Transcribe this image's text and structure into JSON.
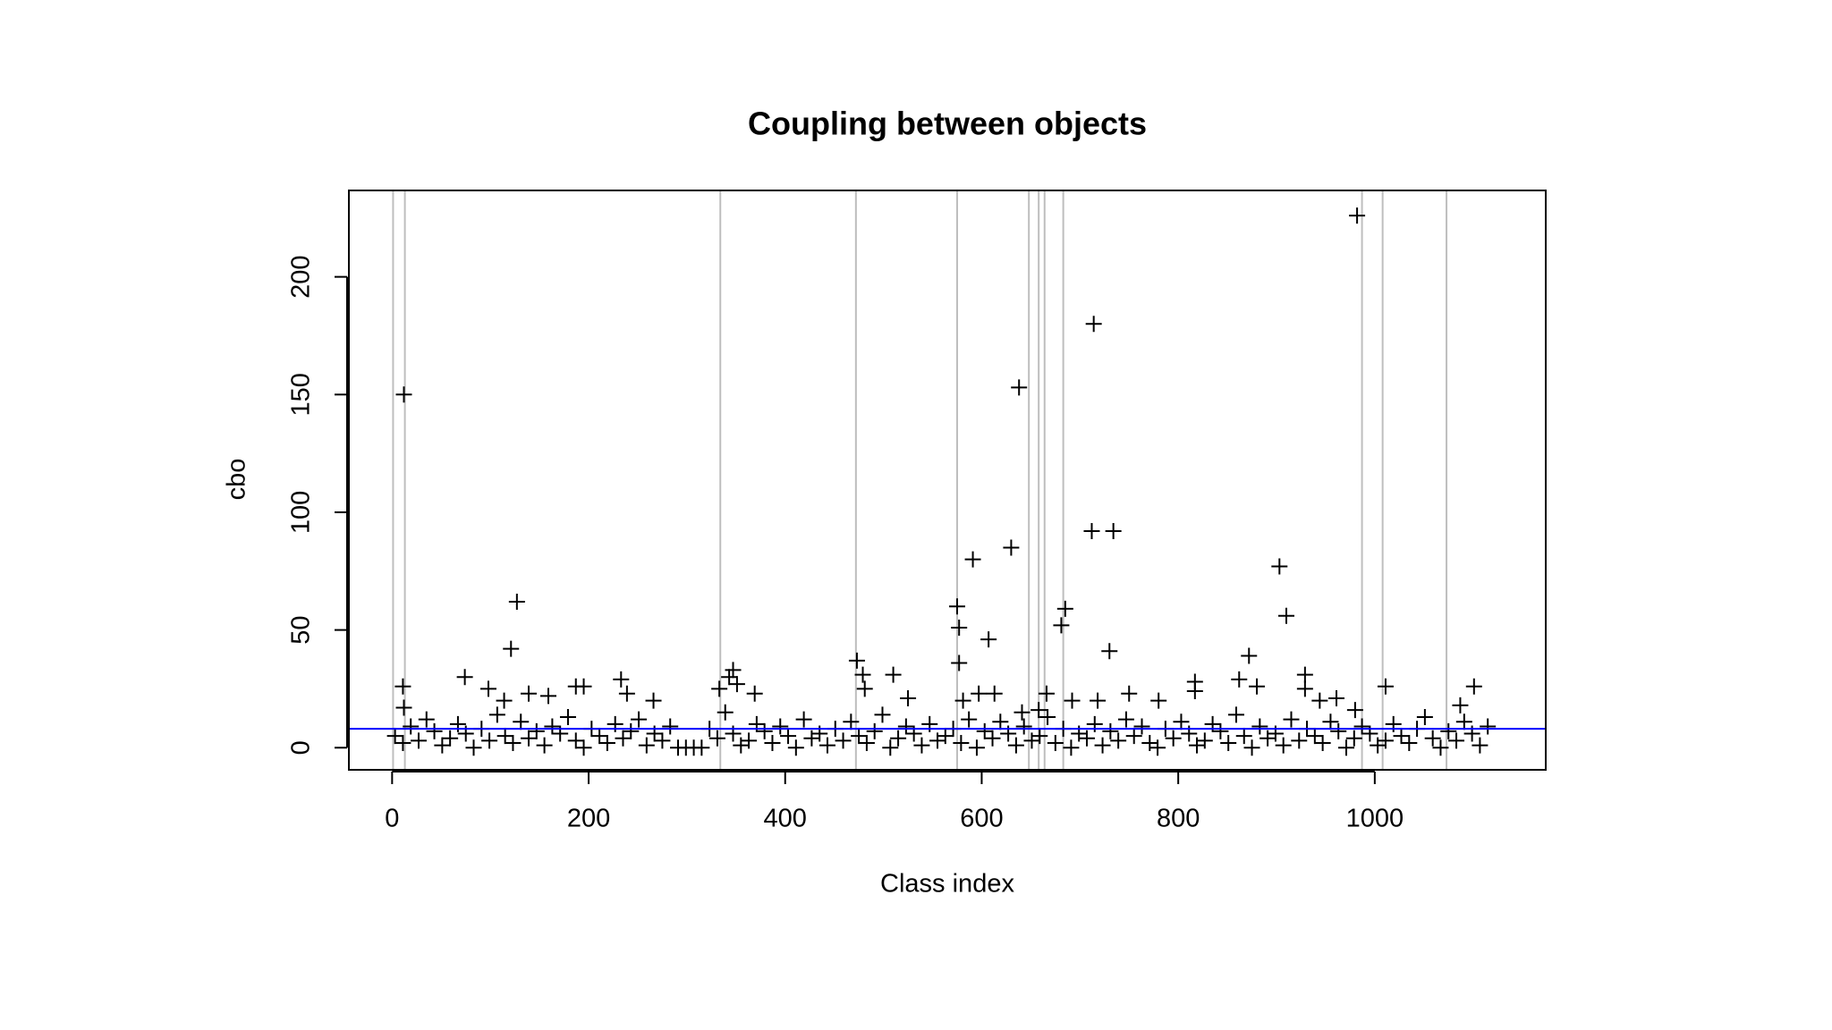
{
  "chart_data": {
    "type": "scatter",
    "title": "Coupling between objects",
    "x_label": "Class index",
    "y_label": "cbo",
    "xlim": [
      -44,
      1174
    ],
    "ylim": [
      -9.4,
      236.7
    ],
    "xticks": [
      0,
      200,
      400,
      600,
      800,
      1000
    ],
    "yticks": [
      0,
      50,
      100,
      150,
      200
    ],
    "color": "#000000",
    "vlines_color": "#bebebe",
    "hline_color": "#0000ff",
    "vlines": [
      1,
      13,
      334,
      472,
      575,
      648,
      658,
      664,
      683,
      987,
      1008,
      1073
    ],
    "hline": 8,
    "x": [
      12,
      11,
      12,
      121,
      127,
      74,
      98,
      114,
      139,
      159,
      187,
      195,
      233,
      239,
      266,
      333,
      347,
      351,
      343,
      369,
      473,
      479,
      481,
      510,
      525,
      575,
      577,
      577,
      581,
      591,
      607,
      597,
      613,
      630,
      638,
      641,
      658,
      666,
      681,
      685,
      692,
      714,
      712,
      734,
      730,
      718,
      750,
      780,
      817,
      817,
      862,
      872,
      880,
      903,
      910,
      929,
      929,
      944,
      961,
      982,
      980,
      1011,
      1101,
      1087,
      3,
      11,
      19,
      27,
      35,
      43,
      51,
      59,
      67,
      75,
      83,
      91,
      99,
      107,
      115,
      123,
      131,
      139,
      147,
      155,
      163,
      171,
      179,
      187,
      195,
      203,
      211,
      219,
      227,
      235,
      243,
      251,
      259,
      267,
      275,
      283,
      291,
      299,
      307,
      315,
      323,
      331,
      339,
      347,
      355,
      363,
      371,
      379,
      387,
      395,
      403,
      411,
      419,
      427,
      435,
      443,
      451,
      459,
      467,
      475,
      483,
      491,
      499,
      507,
      515,
      523,
      531,
      539,
      547,
      555,
      563,
      571,
      579,
      587,
      595,
      603,
      611,
      619,
      627,
      635,
      643,
      651,
      659,
      667,
      675,
      683,
      691,
      699,
      707,
      715,
      723,
      731,
      739,
      747,
      755,
      763,
      771,
      779,
      787,
      795,
      803,
      811,
      819,
      827,
      835,
      843,
      851,
      859,
      867,
      875,
      883,
      891,
      899,
      907,
      915,
      923,
      931,
      939,
      947,
      955,
      963,
      971,
      979,
      987,
      995,
      1003,
      1011,
      1019,
      1027,
      1035,
      1043,
      1051,
      1059,
      1067,
      1075,
      1083,
      1091,
      1099,
      1107,
      1115
    ],
    "values": [
      150,
      26,
      17,
      42,
      62,
      30,
      25,
      20,
      23,
      22,
      26,
      26,
      29,
      23,
      20,
      25,
      33,
      27,
      30,
      23,
      37,
      31,
      25,
      31,
      21,
      60,
      51,
      36,
      20,
      80,
      46,
      23,
      23,
      85,
      153,
      15,
      16,
      23,
      52,
      59,
      20,
      180,
      92,
      92,
      41,
      20,
      23,
      20,
      28,
      24,
      29,
      39,
      26,
      77,
      56,
      31,
      25,
      20,
      21,
      226,
      16,
      26,
      26,
      18,
      5,
      2,
      9,
      3,
      12,
      7,
      1,
      4,
      10,
      6,
      0,
      8,
      3,
      14,
      5,
      2,
      11,
      4,
      7,
      1,
      9,
      6,
      13,
      3,
      0,
      8,
      5,
      2,
      10,
      4,
      7,
      12,
      1,
      6,
      3,
      9,
      0,
      0,
      0,
      0,
      8,
      4,
      15,
      6,
      1,
      3,
      10,
      7,
      2,
      9,
      5,
      0,
      12,
      4,
      6,
      1,
      8,
      3,
      11,
      5,
      2,
      7,
      14,
      0,
      4,
      9,
      6,
      1,
      10,
      3,
      5,
      8,
      2,
      12,
      0,
      7,
      4,
      11,
      6,
      1,
      9,
      3,
      5,
      13,
      2,
      8,
      0,
      6,
      4,
      10,
      1,
      7,
      3,
      12,
      5,
      9,
      2,
      0,
      8,
      4,
      11,
      6,
      1,
      3,
      10,
      7,
      2,
      14,
      5,
      0,
      9,
      4,
      6,
      1,
      12,
      3,
      8,
      5,
      2,
      11,
      7,
      0,
      4,
      9,
      6,
      1,
      3,
      10,
      5,
      2,
      8,
      13,
      4,
      0,
      7,
      3,
      11,
      6,
      1,
      9
    ]
  }
}
